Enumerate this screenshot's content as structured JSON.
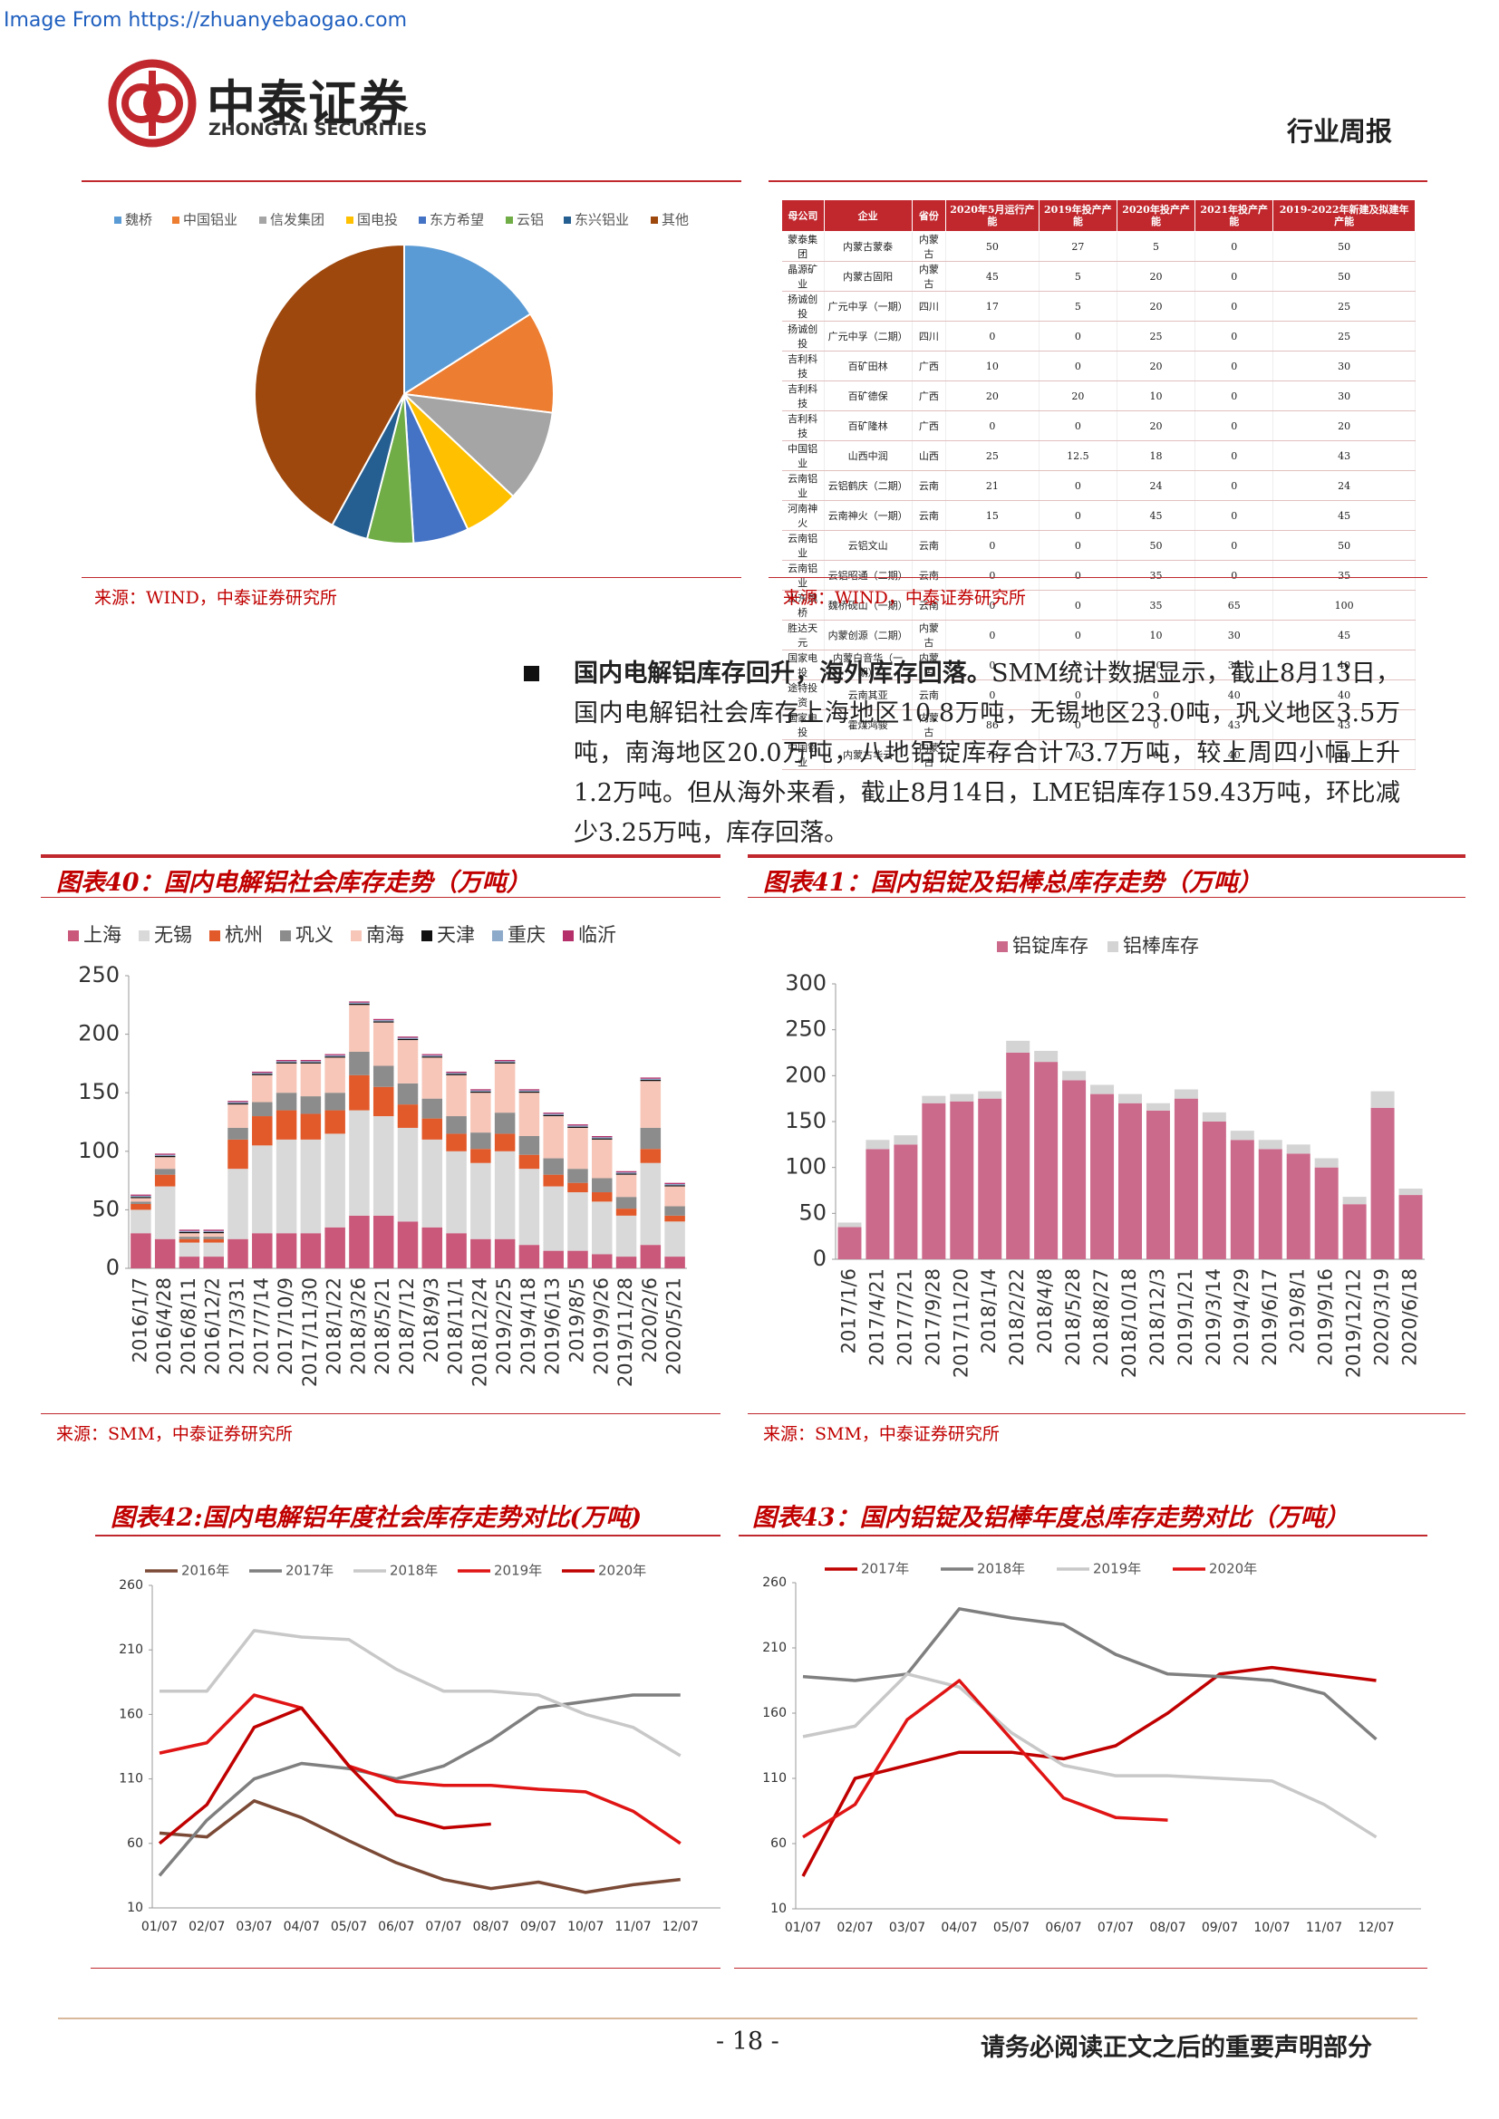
{
  "header": {
    "link": "Image From https://zhuanyebaogao.com",
    "logo_cn": "中泰证券",
    "logo_en": "ZHONGTAI SECURITIES",
    "report_type": "行业周报"
  },
  "table": {
    "headers": [
      "母公司",
      "企业",
      "省份",
      "2020年5月运行产能",
      "2019年投产产能",
      "2020年投产产能",
      "2021年投产产能",
      "2019-2022年新建及拟建年产能"
    ],
    "rows": [
      [
        "蒙泰集团",
        "内蒙古蒙泰",
        "内蒙古",
        "50",
        "27",
        "5",
        "0",
        "50"
      ],
      [
        "晶源矿业",
        "内蒙古固阳",
        "内蒙古",
        "45",
        "5",
        "20",
        "0",
        "50"
      ],
      [
        "扬诚创投",
        "广元中孚（一期）",
        "四川",
        "17",
        "5",
        "20",
        "0",
        "25"
      ],
      [
        "扬诚创投",
        "广元中孚（二期）",
        "四川",
        "0",
        "0",
        "25",
        "0",
        "25"
      ],
      [
        "吉利科技",
        "百矿田林",
        "广西",
        "10",
        "0",
        "20",
        "0",
        "30"
      ],
      [
        "吉利科技",
        "百矿德保",
        "广西",
        "20",
        "20",
        "10",
        "0",
        "30"
      ],
      [
        "吉利科技",
        "百矿隆林",
        "广西",
        "0",
        "0",
        "20",
        "0",
        "20"
      ],
      [
        "中国铝业",
        "山西中润",
        "山西",
        "25",
        "12.5",
        "18",
        "0",
        "43"
      ],
      [
        "云南铝业",
        "云铝鹤庆（二期）",
        "云南",
        "21",
        "0",
        "24",
        "0",
        "24"
      ],
      [
        "河南神火",
        "云南神火（一期）",
        "云南",
        "15",
        "0",
        "45",
        "0",
        "45"
      ],
      [
        "云南铝业",
        "云铝文山",
        "云南",
        "0",
        "0",
        "50",
        "0",
        "50"
      ],
      [
        "云南铝业",
        "云铝昭通（二期）",
        "云南",
        "0",
        "0",
        "35",
        "0",
        "35"
      ],
      [
        "山东魏桥",
        "魏桥砚山（一期）",
        "云南",
        "0",
        "0",
        "35",
        "65",
        "100"
      ],
      [
        "胜达天元",
        "内蒙创源（二期）",
        "内蒙古",
        "0",
        "0",
        "10",
        "30",
        "45"
      ],
      [
        "国家电投",
        "内蒙白音华（一期）",
        "内蒙古",
        "0",
        "0",
        "10",
        "30",
        "40"
      ],
      [
        "途特投资",
        "云南其亚",
        "云南",
        "0",
        "0",
        "0",
        "40",
        "40"
      ],
      [
        "国家电投",
        "霍煤鸿骏",
        "内蒙古",
        "86",
        "0",
        "0",
        "43",
        "43"
      ],
      [
        "中国铝业",
        "内蒙古华云",
        "内蒙古",
        "78",
        "0",
        "0",
        "40",
        "40"
      ]
    ],
    "source": "来源：WIND，中泰证券研究所"
  },
  "paragraph": {
    "lead": "国内电解铝库存回升，海外库存回落。",
    "body": "SMM统计数据显示，截止8月13日，国内电解铝社会库存上海地区10.8万吨，无锡地区23.0吨，巩义地区3.5万吨，南海地区20.0万吨，八地铝锭库存合计73.7万吨，较上周四小幅上升1.2万吨。但从海外来看，截止8月14日，LME铝库存159.43万吨，环比减少3.25万吨，库存回落。"
  },
  "chart_data": [
    {
      "type": "pie",
      "categories": [
        "魏桥",
        "中国铝业",
        "信发集团",
        "国电投",
        "东方希望",
        "云铝",
        "东兴铝业",
        "其他"
      ],
      "values": [
        16,
        11,
        10,
        6,
        6,
        5,
        4,
        42
      ],
      "colors": [
        "#5b9bd5",
        "#ed7d31",
        "#a5a5a5",
        "#ffc000",
        "#4472c4",
        "#70ad47",
        "#255e91",
        "#9e480e"
      ],
      "source": "来源：WIND，中泰证券研究所"
    },
    {
      "type": "stacked_bar",
      "title": "图表40：国内电解铝社会库存走势（万吨）",
      "source": "来源：SMM，中泰证券研究所",
      "categories": [
        "2016/1/7",
        "2016/4/28",
        "2016/8/11",
        "2016/12/2",
        "2017/3/31",
        "2017/7/14",
        "2017/10/9",
        "2017/11/30",
        "2018/1/22",
        "2018/3/26",
        "2018/5/21",
        "2018/7/12",
        "2018/9/3",
        "2018/11/1",
        "2018/12/24",
        "2019/2/25",
        "2019/4/18",
        "2019/6/13",
        "2019/8/5",
        "2019/9/26",
        "2019/11/28",
        "2020/2/6",
        "2020/5/21"
      ],
      "series": [
        {
          "name": "上海",
          "color": "#c9587a",
          "values": [
            30,
            25,
            10,
            10,
            25,
            30,
            30,
            30,
            35,
            45,
            45,
            40,
            35,
            30,
            25,
            25,
            20,
            15,
            15,
            12,
            10,
            20,
            10
          ]
        },
        {
          "name": "无锡",
          "color": "#d9d9d9",
          "values": [
            20,
            45,
            12,
            12,
            60,
            75,
            80,
            80,
            80,
            90,
            85,
            80,
            75,
            70,
            65,
            75,
            65,
            55,
            50,
            45,
            35,
            70,
            30
          ]
        },
        {
          "name": "杭州",
          "color": "#e2592a",
          "values": [
            5,
            10,
            3,
            3,
            25,
            25,
            25,
            22,
            20,
            30,
            25,
            20,
            18,
            15,
            12,
            15,
            12,
            10,
            8,
            8,
            6,
            12,
            5
          ]
        },
        {
          "name": "巩义",
          "color": "#8c8c8c",
          "values": [
            2,
            5,
            2,
            2,
            10,
            12,
            15,
            15,
            15,
            20,
            18,
            18,
            17,
            15,
            14,
            18,
            16,
            14,
            12,
            12,
            10,
            18,
            8
          ]
        },
        {
          "name": "南海",
          "color": "#f7c6b8",
          "values": [
            3,
            10,
            3,
            3,
            20,
            23,
            25,
            28,
            30,
            40,
            37,
            37,
            35,
            35,
            34,
            42,
            37,
            36,
            35,
            33,
            19,
            40,
            17
          ]
        },
        {
          "name": "天津",
          "color": "#111111",
          "values": [
            1,
            1,
            1,
            1,
            1,
            1,
            1,
            1,
            1,
            1,
            1,
            1,
            1,
            1,
            1,
            1,
            1,
            1,
            1,
            1,
            1,
            1,
            1
          ]
        },
        {
          "name": "重庆",
          "color": "#8eaacb",
          "values": [
            1,
            1,
            1,
            1,
            1,
            1,
            1,
            1,
            1,
            1,
            1,
            1,
            1,
            1,
            1,
            1,
            1,
            1,
            1,
            1,
            1,
            1,
            1
          ]
        },
        {
          "name": "临沂",
          "color": "#b5306a",
          "values": [
            1,
            1,
            1,
            1,
            1,
            1,
            1,
            1,
            1,
            1,
            1,
            1,
            1,
            1,
            1,
            1,
            1,
            1,
            1,
            1,
            1,
            1,
            1
          ]
        }
      ],
      "ylim": [
        0,
        250
      ],
      "yticks": [
        0,
        50,
        100,
        150,
        200,
        250
      ],
      "grid": false
    },
    {
      "type": "stacked_bar",
      "title": "图表41：国内铝锭及铝棒总库存走势（万吨）",
      "source": "来源：SMM，中泰证券研究所",
      "categories": [
        "2017/1/6",
        "2017/4/21",
        "2017/7/21",
        "2017/9/28",
        "2017/11/20",
        "2018/1/4",
        "2018/2/22",
        "2018/4/8",
        "2018/5/28",
        "2018/8/27",
        "2018/10/18",
        "2018/12/3",
        "2019/1/21",
        "2019/3/14",
        "2019/4/29",
        "2019/6/17",
        "2019/8/1",
        "2019/9/16",
        "2019/12/12",
        "2020/3/19",
        "2020/6/18"
      ],
      "series": [
        {
          "name": "铝锭库存",
          "color": "#cc6a8c",
          "values": [
            35,
            120,
            125,
            170,
            172,
            175,
            225,
            215,
            195,
            180,
            170,
            162,
            175,
            150,
            130,
            120,
            115,
            100,
            60,
            165,
            70
          ]
        },
        {
          "name": "铝棒库存",
          "color": "#d4d4d4",
          "values": [
            5,
            10,
            10,
            8,
            8,
            8,
            13,
            12,
            10,
            10,
            10,
            8,
            10,
            10,
            10,
            10,
            10,
            10,
            8,
            18,
            7
          ]
        }
      ],
      "ylim": [
        0,
        300
      ],
      "yticks": [
        0,
        50,
        100,
        150,
        200,
        250,
        300
      ],
      "grid": false
    },
    {
      "type": "line",
      "title": "图表42:国内电解铝年度社会库存走势对比(万吨)",
      "categories": [
        "01/07",
        "02/07",
        "03/07",
        "04/07",
        "05/07",
        "06/07",
        "07/07",
        "08/07",
        "09/07",
        "10/07",
        "11/07",
        "12/07"
      ],
      "series": [
        {
          "name": "2016年",
          "color": "#7b4a36",
          "values": [
            68,
            65,
            93,
            80,
            62,
            45,
            32,
            25,
            30,
            22,
            28,
            32
          ]
        },
        {
          "name": "2017年",
          "color": "#7f7f7f",
          "values": [
            35,
            78,
            110,
            122,
            118,
            110,
            120,
            140,
            165,
            170,
            175,
            175
          ]
        },
        {
          "name": "2018年",
          "color": "#c8c8c8",
          "values": [
            178,
            178,
            225,
            220,
            218,
            195,
            178,
            178,
            175,
            160,
            150,
            128
          ]
        },
        {
          "name": "2019年",
          "color": "#e01414",
          "values": [
            130,
            138,
            175,
            165,
            120,
            108,
            105,
            105,
            102,
            100,
            85,
            60
          ]
        },
        {
          "name": "2020年",
          "color": "#c00000",
          "values": [
            60,
            90,
            150,
            165,
            120,
            82,
            72,
            75,
            null,
            null,
            null,
            null
          ]
        }
      ],
      "ylim": [
        10,
        260
      ],
      "yticks": [
        10,
        60,
        110,
        160,
        210,
        260
      ],
      "grid": false
    },
    {
      "type": "line",
      "title": "图表43：国内铝锭及铝棒年度总库存走势对比（万吨）",
      "categories": [
        "01/07",
        "02/07",
        "03/07",
        "04/07",
        "05/07",
        "06/07",
        "07/07",
        "08/07",
        "09/07",
        "10/07",
        "11/07",
        "12/07"
      ],
      "series": [
        {
          "name": "2017年",
          "color": "#c00000",
          "values": [
            35,
            110,
            120,
            130,
            130,
            125,
            135,
            160,
            190,
            195,
            190,
            185
          ]
        },
        {
          "name": "2018年",
          "color": "#7f7f7f",
          "values": [
            188,
            185,
            190,
            240,
            233,
            228,
            205,
            190,
            188,
            185,
            175,
            140
          ]
        },
        {
          "name": "2019年",
          "color": "#c8c8c8",
          "values": [
            142,
            150,
            190,
            180,
            145,
            120,
            112,
            112,
            110,
            108,
            90,
            65
          ]
        },
        {
          "name": "2020年",
          "color": "#e01414",
          "values": [
            65,
            90,
            155,
            185,
            140,
            95,
            80,
            78,
            null,
            null,
            null,
            null
          ]
        }
      ],
      "ylim": [
        10,
        260
      ],
      "yticks": [
        10,
        60,
        110,
        160,
        210,
        260
      ],
      "grid": false
    }
  ],
  "footer": {
    "page": "- 18 -",
    "notice": "请务必阅读正文之后的重要声明部分"
  }
}
